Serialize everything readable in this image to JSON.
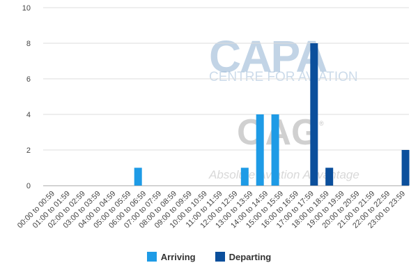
{
  "watermark": {
    "capa": "CAPA",
    "capa_sub": "CENTRE FOR AVIATION",
    "oag": "OAG",
    "oag_reg": "®",
    "oag_sub": "Absolute Aviation Advantage"
  },
  "colors": {
    "arriving": "#1e9be6",
    "departing": "#0b4f9c",
    "grid": "#dcdcdc"
  },
  "chart_data": {
    "type": "bar",
    "ylim": [
      0,
      10
    ],
    "yticks": [
      0,
      2,
      4,
      6,
      8,
      10
    ],
    "grid": true,
    "legend_position": "bottom",
    "categories": [
      "00:00 to 00:59",
      "01:00 to 01:59",
      "02:00 to 02:59",
      "03:00 to 03:59",
      "04:00 to 04:59",
      "05:00 to 05:59",
      "06:00 to 06:59",
      "07:00 to 07:59",
      "08:00 to 08:59",
      "09:00 to 09:59",
      "10:00 to 10:59",
      "11:00 to 11:59",
      "12:00 to 12:59",
      "13:00 to 13:59",
      "14:00 to 14:59",
      "15:00 to 15:59",
      "16:00 to 16:59",
      "17:00 to 17:59",
      "18:00 to 18:59",
      "19:00 to 19:59",
      "20:00 to 20:59",
      "21:00 to 21:59",
      "22:00 to 22:59",
      "23:00 to 23:59"
    ],
    "series": [
      {
        "name": "Arriving",
        "color": "#1e9be6",
        "values": [
          0,
          0,
          0,
          0,
          0,
          0,
          1,
          0,
          0,
          0,
          0,
          0,
          0,
          1,
          4,
          4,
          0,
          0,
          0,
          0,
          0,
          0,
          0,
          0
        ]
      },
      {
        "name": "Departing",
        "color": "#0b4f9c",
        "values": [
          0,
          0,
          0,
          0,
          0,
          0,
          0,
          0,
          0,
          0,
          0,
          0,
          0,
          0,
          0,
          0,
          0,
          8,
          1,
          0,
          0,
          0,
          0,
          2
        ]
      }
    ]
  }
}
